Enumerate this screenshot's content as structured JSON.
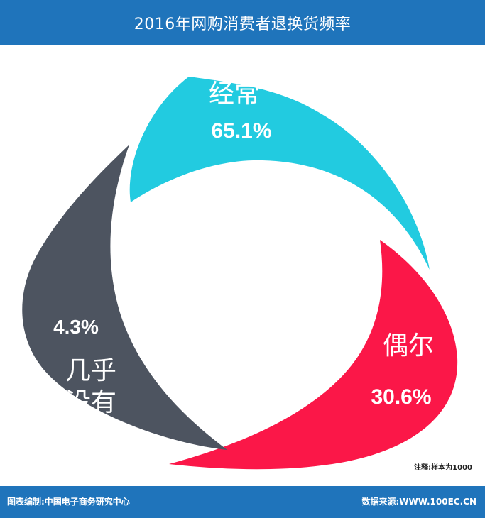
{
  "header": {
    "title": "2016年网购消费者退换货频率"
  },
  "chart_data": {
    "type": "pie",
    "title": "2016年网购消费者退换货频率",
    "series": [
      {
        "name": "经常",
        "value": 65.1,
        "label": "65.1%",
        "color": "#22cbe0"
      },
      {
        "name": "偶尔",
        "value": 30.6,
        "label": "30.6%",
        "color": "#fb1748"
      },
      {
        "name": "几乎没有",
        "value": 4.3,
        "label": "4.3%",
        "color": "#4d5460"
      }
    ]
  },
  "labels": {
    "often_name": "经常",
    "often_value": "65.1%",
    "occasional_name": "偶尔",
    "occasional_value": "30.6%",
    "almost_never_line1": "几乎",
    "almost_never_line2": "没有",
    "almost_never_value": "4.3%"
  },
  "note": "注释:样本为1000",
  "footer": {
    "left": "图表编制:中国电子商务研究中心",
    "right": "数据来源:WWW.100EC.CN"
  },
  "colors": {
    "brand_blue": "#1f74bb"
  }
}
